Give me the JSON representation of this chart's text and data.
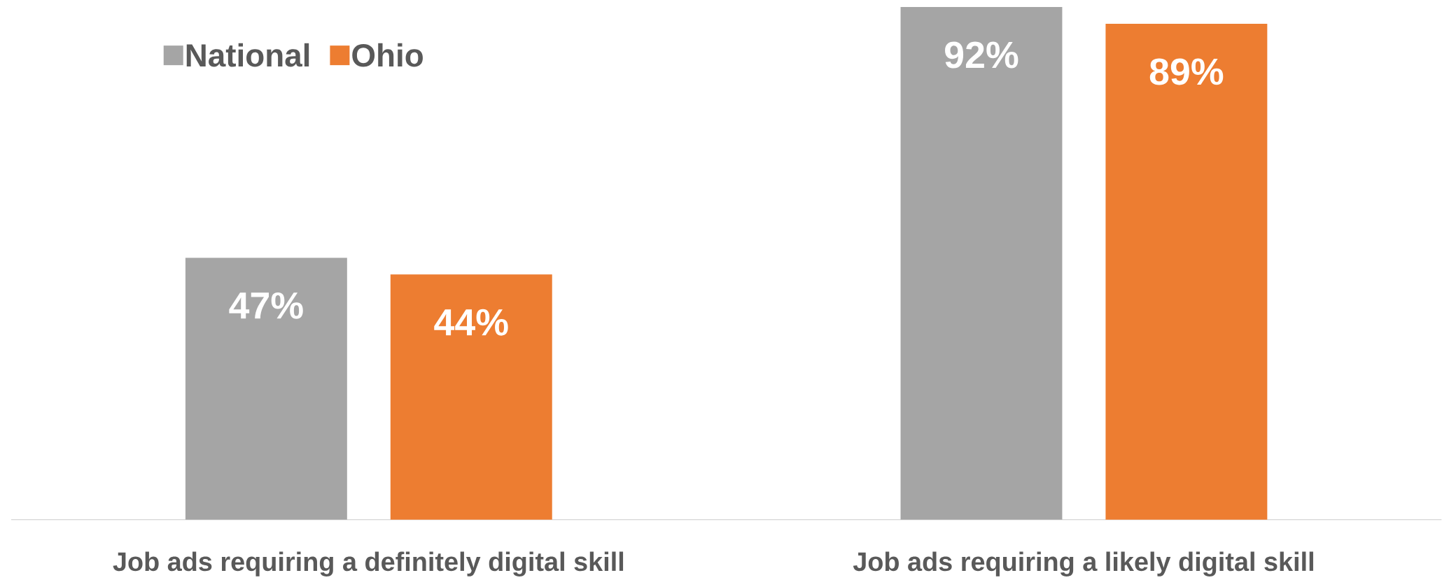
{
  "chart_data": {
    "type": "bar",
    "categories": [
      "Job ads requiring a definitely digital skill",
      "Job ads requiring a likely digital skill"
    ],
    "series": [
      {
        "name": "National",
        "color": "#a5a5a5",
        "values": [
          47,
          92
        ],
        "value_labels": [
          "47%",
          "92%"
        ]
      },
      {
        "name": "Ohio",
        "color": "#ed7d31",
        "values": [
          44,
          89
        ],
        "value_labels": [
          "44%",
          "89%"
        ]
      }
    ],
    "legend": "top left"
  }
}
